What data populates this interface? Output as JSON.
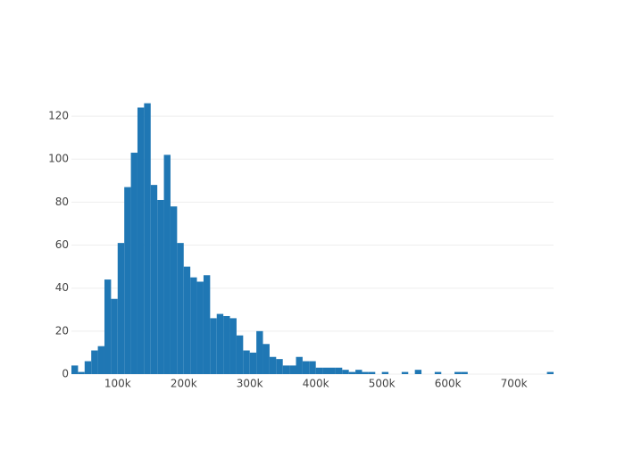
{
  "chart_data": {
    "type": "histogram",
    "color": "#1f77b4",
    "grid": true,
    "bins": [
      30000,
      40000,
      50000,
      60000,
      70000,
      80000,
      90000,
      100000,
      110000,
      120000,
      130000,
      140000,
      150000,
      160000,
      170000,
      180000,
      190000,
      200000,
      210000,
      220000,
      230000,
      240000,
      250000,
      260000,
      270000,
      280000,
      290000,
      300000,
      310000,
      320000,
      330000,
      340000,
      350000,
      360000,
      370000,
      380000,
      390000,
      400000,
      410000,
      420000,
      430000,
      440000,
      450000,
      460000,
      470000,
      480000,
      490000,
      500000,
      510000,
      520000,
      530000,
      540000,
      550000,
      560000,
      570000,
      580000,
      590000,
      600000,
      610000,
      620000,
      630000,
      640000,
      650000,
      660000,
      670000,
      680000,
      690000,
      700000,
      710000,
      720000,
      730000,
      740000,
      750000,
      760000
    ],
    "values": [
      4,
      1,
      6,
      11,
      13,
      44,
      35,
      61,
      87,
      103,
      124,
      126,
      88,
      81,
      102,
      78,
      61,
      50,
      45,
      43,
      46,
      26,
      28,
      27,
      26,
      18,
      11,
      10,
      20,
      14,
      8,
      7,
      4,
      4,
      8,
      6,
      6,
      3,
      3,
      3,
      3,
      2,
      1,
      2,
      1,
      1,
      0,
      1,
      0,
      0,
      1,
      0,
      2,
      0,
      0,
      1,
      0,
      0,
      1,
      1,
      0,
      0,
      0,
      0,
      0,
      0,
      0,
      0,
      0,
      0,
      0,
      0,
      1
    ],
    "xlim": [
      30000,
      760000
    ],
    "ylim": [
      0,
      132.5
    ],
    "xticks": [
      {
        "value": 100000,
        "label": "100k"
      },
      {
        "value": 200000,
        "label": "200k"
      },
      {
        "value": 300000,
        "label": "300k"
      },
      {
        "value": 400000,
        "label": "400k"
      },
      {
        "value": 500000,
        "label": "500k"
      },
      {
        "value": 600000,
        "label": "600k"
      },
      {
        "value": 700000,
        "label": "700k"
      }
    ],
    "yticks": [
      0,
      20,
      40,
      60,
      80,
      100,
      120
    ]
  }
}
